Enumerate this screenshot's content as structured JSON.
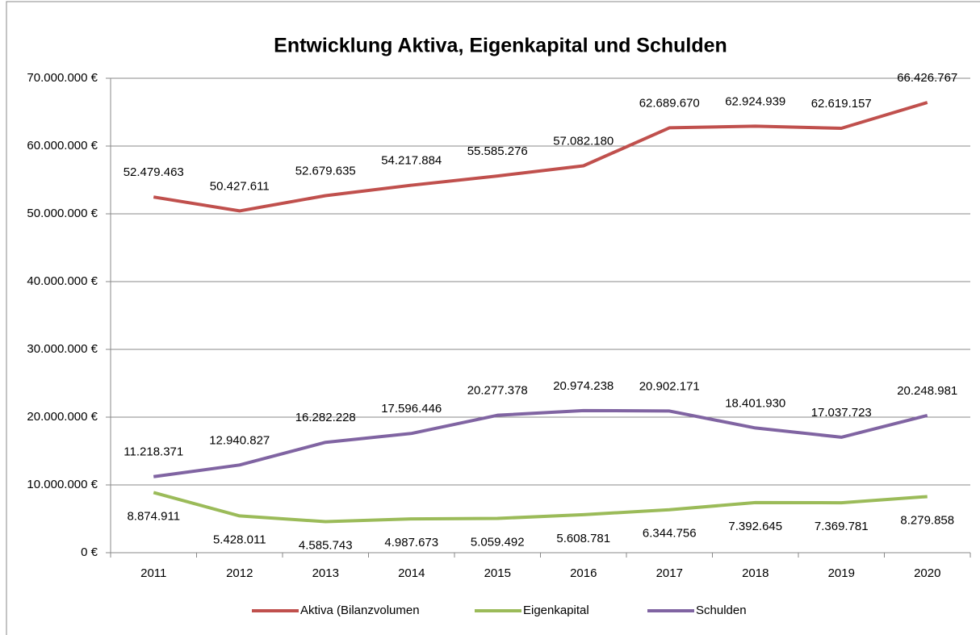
{
  "chart_data": {
    "type": "line",
    "title": "Entwicklung Aktiva, Eigenkapital und Schulden",
    "categories": [
      "2011",
      "2012",
      "2013",
      "2014",
      "2015",
      "2016",
      "2017",
      "2018",
      "2019",
      "2020"
    ],
    "series": [
      {
        "name": "Aktiva (Bilanzvolumen",
        "color": "#c0504d",
        "values": [
          52479463,
          50427611,
          52679635,
          54217884,
          55585276,
          57082180,
          62689670,
          62924939,
          62619157,
          66426767
        ],
        "value_labels": [
          "52.479.463",
          "50.427.611",
          "52.679.635",
          "54.217.884",
          "55.585.276",
          "57.082.180",
          "62.689.670",
          "62.924.939",
          "62.619.157",
          "66.426.767"
        ]
      },
      {
        "name": "Eigenkapital",
        "color": "#9bbb59",
        "values": [
          8874911,
          5428011,
          4585743,
          4987673,
          5059492,
          5608781,
          6344756,
          7392645,
          7369781,
          8279858
        ],
        "value_labels": [
          "8.874.911",
          "5.428.011",
          "4.585.743",
          "4.987.673",
          "5.059.492",
          "5.608.781",
          "6.344.756",
          "7.392.645",
          "7.369.781",
          "8.279.858"
        ]
      },
      {
        "name": "Schulden",
        "color": "#8064a2",
        "values": [
          11218371,
          12940827,
          16282228,
          17596446,
          20277378,
          20974238,
          20902171,
          18401930,
          17037723,
          20248981
        ],
        "value_labels": [
          "11.218.371",
          "12.940.827",
          "16.282.228",
          "17.596.446",
          "20.277.378",
          "20.974.238",
          "20.902.171",
          "18.401.930",
          "17.037.723",
          "20.248.981"
        ]
      }
    ],
    "ylim": [
      0,
      70000000
    ],
    "yticks": [
      {
        "value": 0,
        "label": "0 €"
      },
      {
        "value": 10000000,
        "label": "10.000.000 €"
      },
      {
        "value": 20000000,
        "label": "20.000.000 €"
      },
      {
        "value": 30000000,
        "label": "30.000.000 €"
      },
      {
        "value": 40000000,
        "label": "40.000.000 €"
      },
      {
        "value": 50000000,
        "label": "50.000.000 €"
      },
      {
        "value": 60000000,
        "label": "60.000.000 €"
      },
      {
        "value": 70000000,
        "label": "70.000.000 €"
      }
    ],
    "grid": true,
    "legend": "bottom"
  }
}
